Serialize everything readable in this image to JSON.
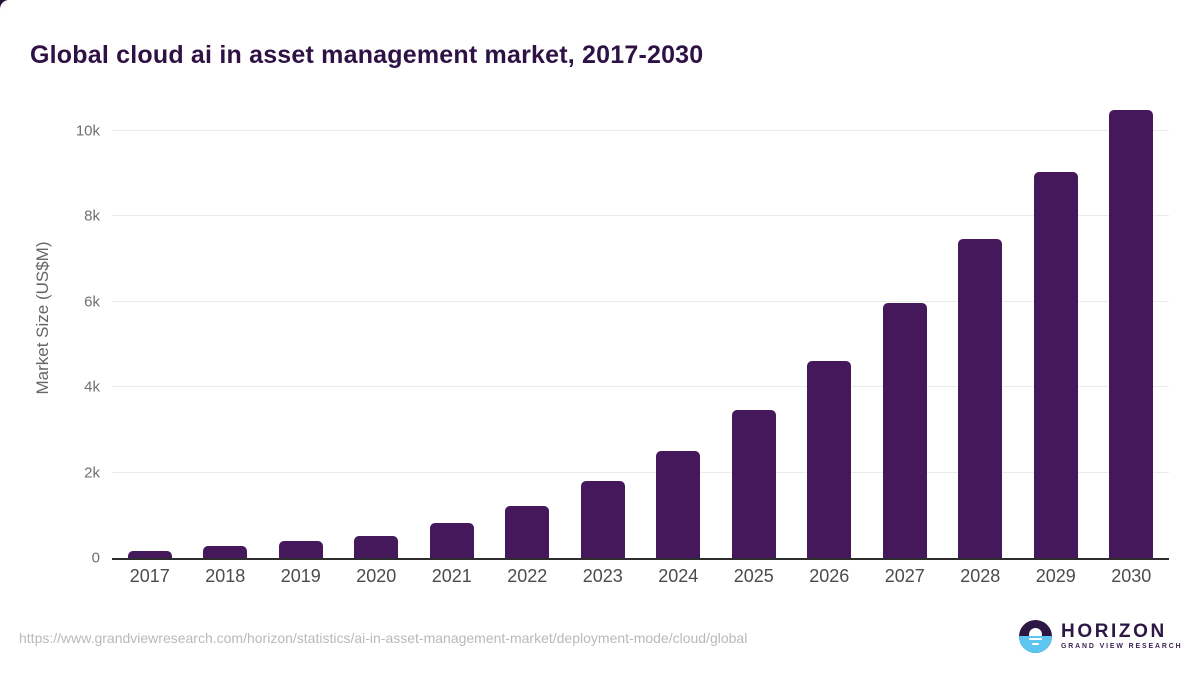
{
  "chart_data": {
    "type": "bar",
    "title": "Global cloud ai in asset management market, 2017-2030",
    "categories": [
      "2017",
      "2018",
      "2019",
      "2020",
      "2021",
      "2022",
      "2023",
      "2024",
      "2025",
      "2026",
      "2027",
      "2028",
      "2029",
      "2030"
    ],
    "values": [
      155,
      275,
      395,
      510,
      815,
      1215,
      1800,
      2500,
      3455,
      4605,
      5965,
      7460,
      9025,
      10475
    ],
    "xlabel": "",
    "ylabel": "Market Size (US$M)",
    "ylim": [
      0,
      10250
    ],
    "yticks": [
      {
        "value": 0,
        "label": "0"
      },
      {
        "value": 2000,
        "label": "2k"
      },
      {
        "value": 4000,
        "label": "4k"
      },
      {
        "value": 6000,
        "label": "6k"
      },
      {
        "value": 8000,
        "label": "8k"
      },
      {
        "value": 10000,
        "label": "10k"
      }
    ],
    "grid": "horizontal",
    "legend": "none",
    "bar_color": "#45175b"
  },
  "colors": {
    "title": "#2e1245",
    "bar": "#45175b",
    "gridline": "#eaeaea",
    "axis_line": "#2d2d2d",
    "x_tick": "#4b4b4b",
    "y_tick": "#707070",
    "source_url": "#b9b9b9",
    "logo_purple": "#2c1745",
    "logo_blue": "#5cc6f0"
  },
  "footer": {
    "source_url": "https://www.grandviewresearch.com/horizon/statistics/ai-in-asset-management-market/deployment-mode/cloud/global",
    "logo": {
      "name": "HORIZON",
      "subtitle": "GRAND VIEW RESEARCH"
    }
  }
}
